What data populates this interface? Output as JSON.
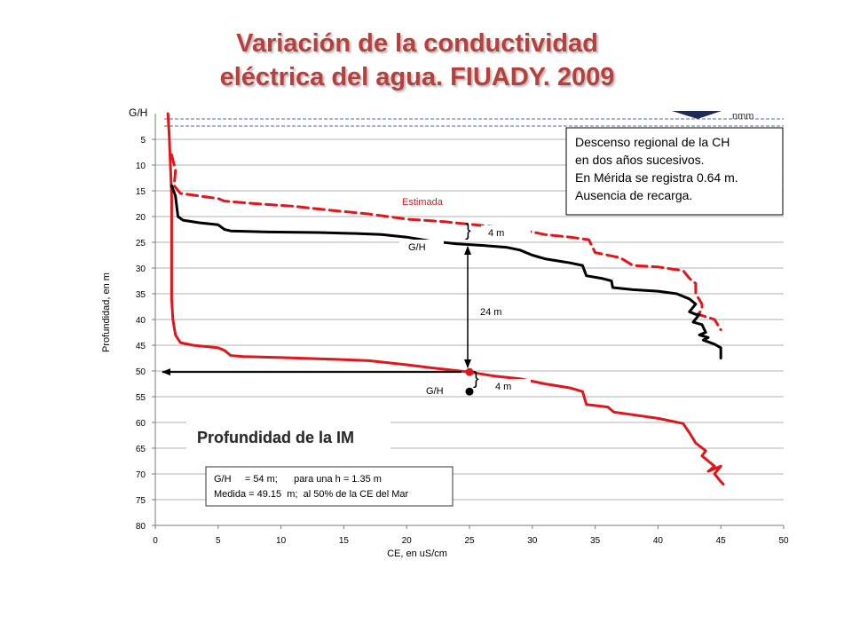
{
  "title_line1": "Variación de la conductividad",
  "title_line2": "eléctrica del agua. FIUADY. 2009",
  "colors": {
    "red": "#e0161b",
    "black": "#000000",
    "title": "#b8403c",
    "grid": "#b0b0b0"
  },
  "chart_data": {
    "type": "line",
    "xlabel": "CE, en uS/cm",
    "ylabel": "Profundidad, en m",
    "xlim": [
      0,
      50
    ],
    "ylim": [
      0,
      80
    ],
    "y_inverted": true,
    "grid": "horizontal",
    "x_ticks": [
      0,
      5,
      10,
      15,
      20,
      25,
      30,
      35,
      40,
      45,
      50
    ],
    "y_ticks": [
      5,
      10,
      15,
      20,
      25,
      30,
      35,
      40,
      45,
      50,
      55,
      60,
      65,
      70,
      75,
      80
    ],
    "y_top_label": "G/H",
    "nmm_label": "nmm",
    "series": [
      {
        "style": "solid",
        "color": "#e0161b",
        "points": [
          [
            1.0,
            0
          ],
          [
            1.1,
            4
          ],
          [
            1.2,
            10
          ],
          [
            1.3,
            16
          ],
          [
            1.3,
            22
          ],
          [
            1.3,
            30
          ],
          [
            1.3,
            36
          ],
          [
            1.4,
            40
          ],
          [
            1.6,
            43
          ],
          [
            2,
            44.5
          ],
          [
            3,
            45
          ],
          [
            5,
            45.5
          ],
          [
            5.5,
            46
          ],
          [
            6,
            47
          ],
          [
            7,
            47.2
          ],
          [
            10,
            47.4
          ],
          [
            14,
            47.7
          ],
          [
            17,
            48
          ],
          [
            20,
            48.8
          ],
          [
            22,
            49.4
          ],
          [
            25,
            50.2
          ],
          [
            27,
            51
          ],
          [
            29,
            51.5
          ],
          [
            31,
            52.5
          ],
          [
            33,
            53.3
          ],
          [
            34,
            54
          ],
          [
            34.3,
            56.5
          ],
          [
            36,
            57
          ],
          [
            36.5,
            58
          ],
          [
            38,
            58.5
          ],
          [
            40,
            59.2
          ],
          [
            42,
            60.2
          ],
          [
            42.5,
            62
          ],
          [
            43,
            64
          ],
          [
            43.8,
            65.5
          ],
          [
            43.5,
            66.5
          ],
          [
            44,
            67.5
          ],
          [
            44.5,
            68.5
          ],
          [
            44,
            69.5
          ],
          [
            45,
            68.5
          ],
          [
            44.5,
            70
          ],
          [
            45,
            71.5
          ],
          [
            45.2,
            72
          ]
        ]
      },
      {
        "style": "dashed",
        "color": "#e0161b",
        "points": [
          [
            1.3,
            8
          ],
          [
            1.6,
            11
          ],
          [
            1.5,
            14
          ],
          [
            2,
            15.5
          ],
          [
            3.5,
            16
          ],
          [
            5,
            16.5
          ],
          [
            5.5,
            17
          ],
          [
            8,
            17.5
          ],
          [
            11,
            18
          ],
          [
            14,
            18.8
          ],
          [
            17,
            19.5
          ],
          [
            20,
            20.5
          ],
          [
            23,
            21
          ],
          [
            25,
            21.5
          ],
          [
            27,
            22
          ],
          [
            29,
            22.5
          ],
          [
            31,
            23.5
          ],
          [
            33,
            24
          ],
          [
            34.5,
            24.5
          ],
          [
            35,
            27
          ],
          [
            37,
            28
          ],
          [
            38,
            29.5
          ],
          [
            40,
            29.8
          ],
          [
            42,
            30.5
          ],
          [
            42.5,
            32
          ],
          [
            43,
            33
          ],
          [
            43,
            35
          ],
          [
            43.5,
            37
          ],
          [
            43.5,
            38
          ],
          [
            43.2,
            39
          ],
          [
            44.5,
            40
          ],
          [
            45,
            42
          ]
        ]
      },
      {
        "style": "solid",
        "color": "#000000",
        "points": [
          [
            1.3,
            14
          ],
          [
            1.6,
            16
          ],
          [
            1.7,
            18
          ],
          [
            1.8,
            20
          ],
          [
            2.2,
            20.7
          ],
          [
            3.5,
            21.2
          ],
          [
            5,
            21.6
          ],
          [
            5.5,
            22.5
          ],
          [
            6,
            22.8
          ],
          [
            9,
            23
          ],
          [
            13,
            23.1
          ],
          [
            16,
            23.3
          ],
          [
            18,
            23.5
          ],
          [
            20,
            24
          ],
          [
            22,
            24.8
          ],
          [
            24,
            25.3
          ],
          [
            26,
            25.6
          ],
          [
            28,
            26
          ],
          [
            29,
            26.5
          ],
          [
            30,
            27.5
          ],
          [
            31,
            28.2
          ],
          [
            33,
            29
          ],
          [
            34,
            29.5
          ],
          [
            34.3,
            31.5
          ],
          [
            35.5,
            32
          ],
          [
            36.3,
            32.5
          ],
          [
            36.4,
            33.8
          ],
          [
            38,
            34.2
          ],
          [
            40,
            34.5
          ],
          [
            41.5,
            35
          ],
          [
            42.5,
            36
          ],
          [
            43,
            37
          ],
          [
            42.5,
            38.5
          ],
          [
            43,
            39
          ],
          [
            43.3,
            39
          ],
          [
            42.8,
            40.5
          ],
          [
            43.5,
            41
          ],
          [
            43.8,
            42.5
          ],
          [
            43.3,
            43
          ],
          [
            44,
            43.5
          ],
          [
            43.6,
            44
          ],
          [
            44.5,
            44.8
          ],
          [
            45,
            45.5
          ],
          [
            45,
            46.5
          ],
          [
            45,
            47.5
          ]
        ]
      }
    ],
    "estimada_label": "Estimada",
    "gh_label_upper": "G/H",
    "gh_label_lower": "G/H",
    "arrow_24_label": "24 m",
    "brace_4_upper_label": "4 m",
    "brace_4_lower_label": "4 m",
    "marker_red_point": [
      25,
      50.2
    ],
    "marker_black_point": [
      25,
      54
    ],
    "info_box_lines": [
      "Descenso regional de la CH",
      "en dos años sucesivos.",
      "En Mérida se registra 0.64 m.",
      "Ausencia de recarga."
    ],
    "im_label": "Profundidad de la IM",
    "gh_box_lines": [
      "G/H     = 54 m;      para una h = 1.35 m",
      "Medida = 49.15  m;  al 50% de la CE del Mar"
    ]
  }
}
